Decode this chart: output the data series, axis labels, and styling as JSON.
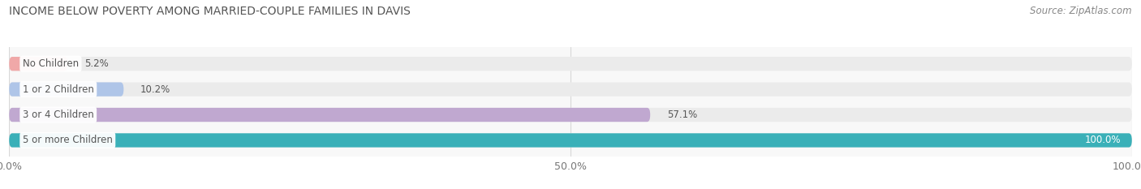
{
  "title": "INCOME BELOW POVERTY AMONG MARRIED-COUPLE FAMILIES IN DAVIS",
  "source": "Source: ZipAtlas.com",
  "categories": [
    "No Children",
    "1 or 2 Children",
    "3 or 4 Children",
    "5 or more Children"
  ],
  "values": [
    5.2,
    10.2,
    57.1,
    100.0
  ],
  "bar_colors": [
    "#f0a8a8",
    "#afc5e8",
    "#c0a8d0",
    "#3ab0b8"
  ],
  "bar_bg_color": "#ebebeb",
  "bar_height": 0.55,
  "bar_spacing": 1.0,
  "xlim": [
    0,
    100
  ],
  "xticks": [
    0.0,
    50.0,
    100.0
  ],
  "xtick_labels": [
    "0.0%",
    "50.0%",
    "100.0%"
  ],
  "title_fontsize": 10,
  "source_fontsize": 8.5,
  "label_fontsize": 8.5,
  "value_fontsize": 8.5,
  "tick_fontsize": 9,
  "bg_color": "#ffffff",
  "plot_bg_color": "#f8f8f8",
  "grid_color": "#d8d8d8",
  "value_color_inside": "#ffffff",
  "value_color_outside": "#555555",
  "label_text_color": "#555555",
  "title_color": "#555555",
  "source_color": "#888888"
}
